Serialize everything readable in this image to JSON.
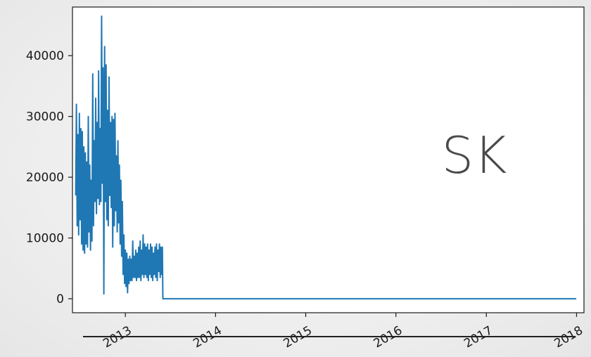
{
  "overlay_text": "SK",
  "chart_data": {
    "type": "line",
    "title": "",
    "xlabel": "",
    "ylabel": "",
    "xlim": [
      "2012-06-01",
      "2018-01-31"
    ],
    "ylim": [
      -2300,
      48000
    ],
    "x_ticks": [
      "2013",
      "2014",
      "2015",
      "2016",
      "2017",
      "2018"
    ],
    "y_ticks": [
      0,
      10000,
      20000,
      30000,
      40000
    ],
    "grid": false,
    "legend": "none",
    "series": [
      {
        "color": "#1f77b4",
        "points": [
          [
            "2012-06-14",
            17000
          ],
          [
            "2012-06-17",
            32000
          ],
          [
            "2012-06-20",
            12000
          ],
          [
            "2012-06-23",
            27000
          ],
          [
            "2012-06-26",
            10500
          ],
          [
            "2012-06-29",
            30500
          ],
          [
            "2012-07-02",
            13000
          ],
          [
            "2012-07-05",
            28000
          ],
          [
            "2012-07-08",
            9000
          ],
          [
            "2012-07-11",
            27500
          ],
          [
            "2012-07-14",
            8000
          ],
          [
            "2012-07-17",
            25000
          ],
          [
            "2012-07-20",
            7500
          ],
          [
            "2012-07-23",
            24000
          ],
          [
            "2012-07-26",
            9000
          ],
          [
            "2012-07-29",
            22500
          ],
          [
            "2012-08-01",
            8500
          ],
          [
            "2012-08-04",
            30000
          ],
          [
            "2012-08-07",
            11000
          ],
          [
            "2012-08-10",
            22000
          ],
          [
            "2012-08-13",
            8000
          ],
          [
            "2012-08-16",
            19500
          ],
          [
            "2012-08-19",
            9500
          ],
          [
            "2012-08-22",
            37000
          ],
          [
            "2012-08-25",
            12000
          ],
          [
            "2012-08-28",
            26000
          ],
          [
            "2012-08-31",
            16000
          ],
          [
            "2012-09-03",
            33000
          ],
          [
            "2012-09-06",
            14000
          ],
          [
            "2012-09-09",
            29000
          ],
          [
            "2012-09-12",
            16500
          ],
          [
            "2012-09-15",
            37500
          ],
          [
            "2012-09-18",
            15500
          ],
          [
            "2012-09-21",
            28000
          ],
          [
            "2012-09-24",
            16000
          ],
          [
            "2012-09-27",
            46500
          ],
          [
            "2012-09-30",
            19000
          ],
          [
            "2012-10-03",
            38000
          ],
          [
            "2012-10-06",
            800
          ],
          [
            "2012-10-09",
            41500
          ],
          [
            "2012-10-12",
            16000
          ],
          [
            "2012-10-15",
            38500
          ],
          [
            "2012-10-18",
            13000
          ],
          [
            "2012-10-21",
            31000
          ],
          [
            "2012-10-24",
            12000
          ],
          [
            "2012-10-27",
            36500
          ],
          [
            "2012-10-30",
            17000
          ],
          [
            "2012-11-02",
            29000
          ],
          [
            "2012-11-05",
            15000
          ],
          [
            "2012-11-08",
            30000
          ],
          [
            "2012-11-11",
            8500
          ],
          [
            "2012-11-14",
            29500
          ],
          [
            "2012-11-17",
            12000
          ],
          [
            "2012-11-20",
            30500
          ],
          [
            "2012-11-23",
            14500
          ],
          [
            "2012-11-26",
            23500
          ],
          [
            "2012-11-29",
            11000
          ],
          [
            "2012-12-02",
            26000
          ],
          [
            "2012-12-05",
            12500
          ],
          [
            "2012-12-08",
            22000
          ],
          [
            "2012-12-11",
            9000
          ],
          [
            "2012-12-14",
            19500
          ],
          [
            "2012-12-17",
            7000
          ],
          [
            "2012-12-20",
            16000
          ],
          [
            "2012-12-23",
            4000
          ],
          [
            "2012-12-26",
            10500
          ],
          [
            "2012-12-29",
            2500
          ],
          [
            "2013-01-01",
            8000
          ],
          [
            "2013-01-04",
            2000
          ],
          [
            "2013-01-07",
            7500
          ],
          [
            "2013-01-10",
            1000
          ],
          [
            "2013-01-13",
            6500
          ],
          [
            "2013-01-16",
            2500
          ],
          [
            "2013-01-19",
            7000
          ],
          [
            "2013-01-22",
            3000
          ],
          [
            "2013-01-25",
            6500
          ],
          [
            "2013-01-28",
            3000
          ],
          [
            "2013-01-31",
            9500
          ],
          [
            "2013-02-03",
            3500
          ],
          [
            "2013-02-06",
            7000
          ],
          [
            "2013-02-09",
            3500
          ],
          [
            "2013-02-12",
            8000
          ],
          [
            "2013-02-15",
            3000
          ],
          [
            "2013-02-18",
            7500
          ],
          [
            "2013-02-21",
            3500
          ],
          [
            "2013-02-24",
            8500
          ],
          [
            "2013-02-27",
            3500
          ],
          [
            "2013-03-02",
            9500
          ],
          [
            "2013-03-05",
            3000
          ],
          [
            "2013-03-08",
            8000
          ],
          [
            "2013-03-11",
            4000
          ],
          [
            "2013-03-14",
            10500
          ],
          [
            "2013-03-17",
            3500
          ],
          [
            "2013-03-20",
            9000
          ],
          [
            "2013-03-23",
            4000
          ],
          [
            "2013-03-26",
            8500
          ],
          [
            "2013-03-29",
            3500
          ],
          [
            "2013-04-01",
            9000
          ],
          [
            "2013-04-04",
            3000
          ],
          [
            "2013-04-07",
            8000
          ],
          [
            "2013-04-10",
            4000
          ],
          [
            "2013-04-13",
            9000
          ],
          [
            "2013-04-16",
            3500
          ],
          [
            "2013-04-19",
            8500
          ],
          [
            "2013-04-22",
            3000
          ],
          [
            "2013-04-25",
            7500
          ],
          [
            "2013-04-28",
            4000
          ],
          [
            "2013-05-01",
            8500
          ],
          [
            "2013-05-04",
            3500
          ],
          [
            "2013-05-07",
            9000
          ],
          [
            "2013-05-10",
            3000
          ],
          [
            "2013-05-13",
            8000
          ],
          [
            "2013-05-16",
            4500
          ],
          [
            "2013-05-19",
            9000
          ],
          [
            "2013-05-22",
            3500
          ],
          [
            "2013-05-25",
            8500
          ],
          [
            "2013-05-28",
            4000
          ],
          [
            "2013-05-31",
            8500
          ],
          [
            "2013-06-02",
            0
          ],
          [
            "2017-12-31",
            0
          ]
        ]
      }
    ]
  }
}
